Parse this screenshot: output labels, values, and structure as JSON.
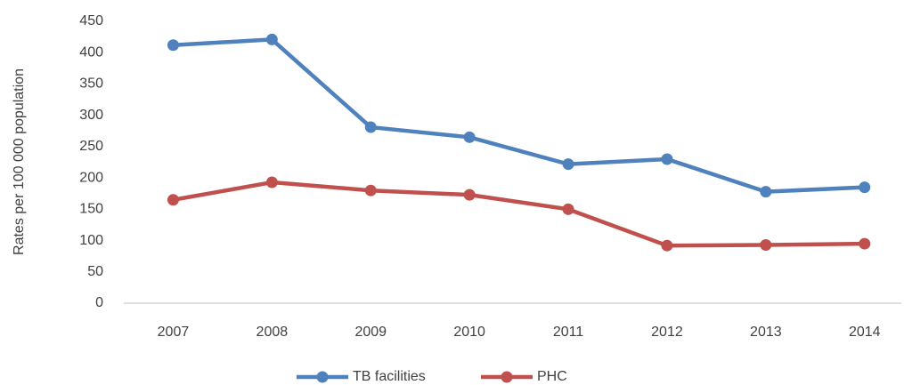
{
  "chart_data": {
    "type": "line",
    "y_label": "Rates per 100 000 population",
    "categories": [
      "2007",
      "2008",
      "2009",
      "2010",
      "2011",
      "2012",
      "2013",
      "2014"
    ],
    "series": [
      {
        "name": "TB facilities",
        "color": "#4f81bd",
        "values": [
          412,
          421,
          281,
          265,
          222,
          230,
          178,
          185
        ]
      },
      {
        "name": "PHC",
        "color": "#c0504d",
        "values": [
          165,
          193,
          180,
          173,
          150,
          92,
          93,
          95
        ]
      }
    ],
    "ylim": [
      0,
      450
    ],
    "yticks": [
      0,
      50,
      100,
      150,
      200,
      250,
      300,
      350,
      400,
      450
    ],
    "grid": false,
    "legend": "bottom"
  }
}
